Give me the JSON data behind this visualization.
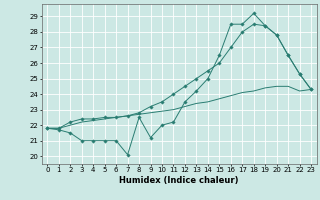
{
  "xlabel": "Humidex (Indice chaleur)",
  "bg_color": "#cce8e4",
  "grid_color": "#ffffff",
  "line_color": "#2a7d72",
  "xlim": [
    -0.5,
    23.5
  ],
  "ylim": [
    19.5,
    29.8
  ],
  "yticks": [
    20,
    21,
    22,
    23,
    24,
    25,
    26,
    27,
    28,
    29
  ],
  "xticks": [
    0,
    1,
    2,
    3,
    4,
    5,
    6,
    7,
    8,
    9,
    10,
    11,
    12,
    13,
    14,
    15,
    16,
    17,
    18,
    19,
    20,
    21,
    22,
    23
  ],
  "line1_x": [
    0,
    1,
    2,
    3,
    4,
    5,
    6,
    7,
    8,
    9,
    10,
    11,
    12,
    13,
    14,
    15,
    16,
    17,
    18,
    19,
    20,
    21,
    22,
    23
  ],
  "line1_y": [
    21.8,
    21.7,
    21.5,
    21.0,
    21.0,
    21.0,
    21.0,
    20.1,
    22.5,
    21.2,
    22.0,
    22.2,
    23.5,
    24.2,
    25.0,
    26.5,
    28.5,
    28.5,
    29.2,
    28.4,
    27.8,
    26.5,
    25.3,
    24.3
  ],
  "line2_x": [
    0,
    1,
    2,
    3,
    4,
    5,
    6,
    7,
    8,
    9,
    10,
    11,
    12,
    13,
    14,
    15,
    16,
    17,
    18,
    19,
    20,
    21,
    22,
    23
  ],
  "line2_y": [
    21.8,
    21.8,
    22.2,
    22.4,
    22.4,
    22.5,
    22.5,
    22.6,
    22.8,
    23.2,
    23.5,
    24.0,
    24.5,
    25.0,
    25.5,
    26.0,
    27.0,
    28.0,
    28.5,
    28.4,
    27.8,
    26.5,
    25.3,
    24.3
  ],
  "line3_x": [
    0,
    1,
    2,
    3,
    4,
    5,
    6,
    7,
    8,
    9,
    10,
    11,
    12,
    13,
    14,
    15,
    16,
    17,
    18,
    19,
    20,
    21,
    22,
    23
  ],
  "line3_y": [
    21.8,
    21.8,
    22.0,
    22.2,
    22.3,
    22.4,
    22.5,
    22.6,
    22.7,
    22.8,
    22.9,
    23.0,
    23.2,
    23.4,
    23.5,
    23.7,
    23.9,
    24.1,
    24.2,
    24.4,
    24.5,
    24.5,
    24.2,
    24.3
  ],
  "tick_fontsize": 5,
  "xlabel_fontsize": 6,
  "xlabel_fontweight": "bold",
  "lw": 0.7,
  "ms": 1.8
}
